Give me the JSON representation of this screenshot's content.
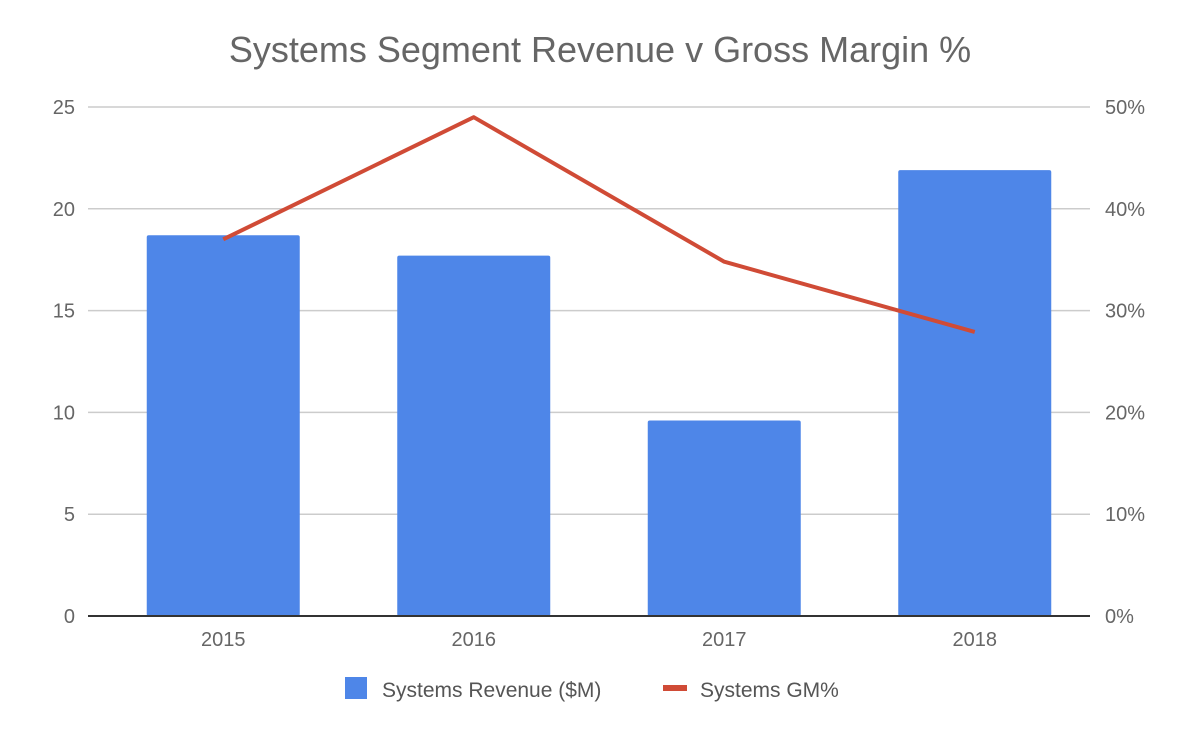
{
  "chart_data": {
    "type": "bar+line",
    "title": "Systems Segment Revenue v Gross Margin %",
    "categories": [
      "2015",
      "2016",
      "2017",
      "2018"
    ],
    "series": [
      {
        "name": "Systems Revenue ($M)",
        "type": "bar",
        "axis": "left",
        "color": "#4e86e8",
        "values": [
          18.7,
          17.7,
          9.6,
          21.9
        ]
      },
      {
        "name": "Systems GM%",
        "type": "line",
        "axis": "right",
        "color": "#d04b36",
        "values": [
          37.0,
          49.0,
          34.8,
          27.9
        ]
      }
    ],
    "left_axis": {
      "ylim": [
        0,
        25
      ],
      "ticks": [
        "0",
        "5",
        "10",
        "15",
        "20",
        "25"
      ]
    },
    "right_axis": {
      "ylim": [
        0,
        50
      ],
      "ticks": [
        "0%",
        "10%",
        "20%",
        "30%",
        "40%",
        "50%"
      ]
    },
    "grid": true,
    "legend_position": "bottom"
  }
}
